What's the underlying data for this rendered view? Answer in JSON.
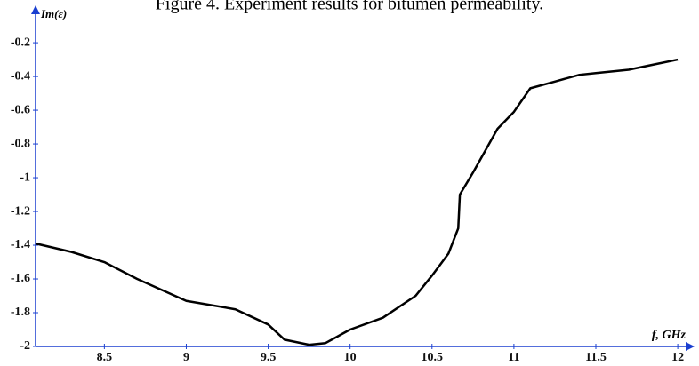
{
  "chart_data": {
    "type": "line",
    "title": "Figure 4. Experiment results for bitumen permeability.",
    "y_label": "Im(ε)",
    "x_label": "f, GHz",
    "x": [
      8.08,
      8.3,
      8.5,
      8.7,
      9,
      9.3,
      9.5,
      9.6,
      9.75,
      9.85,
      10,
      10.2,
      10.4,
      10.5,
      10.6,
      10.66,
      10.67,
      10.75,
      10.9,
      11,
      11.1,
      11.25,
      11.4,
      11.5,
      11.7,
      11.85,
      12
    ],
    "series": [
      {
        "name": "Im(ε)",
        "color": "#000000",
        "values": [
          -1.39,
          -1.44,
          -1.5,
          -1.6,
          -1.73,
          -1.78,
          -1.87,
          -1.96,
          -1.99,
          -1.98,
          -1.9,
          -1.83,
          -1.7,
          -1.58,
          -1.45,
          -1.3,
          -1.1,
          -0.97,
          -0.71,
          -0.61,
          -0.47,
          -0.43,
          -0.39,
          -0.38,
          -0.36,
          -0.33,
          -0.3
        ]
      }
    ],
    "xlim": [
      8.08,
      12.07
    ],
    "ylim": [
      -2,
      -0.01
    ],
    "xticks": [
      8.5,
      9,
      9.5,
      10,
      10.5,
      11,
      11.5,
      12
    ],
    "yticks": [
      -2,
      -1.8,
      -1.6,
      -1.4,
      -1.2,
      -1,
      -0.8,
      -0.6,
      -0.4,
      -0.2
    ],
    "axis_color": "#1a3fd0"
  }
}
